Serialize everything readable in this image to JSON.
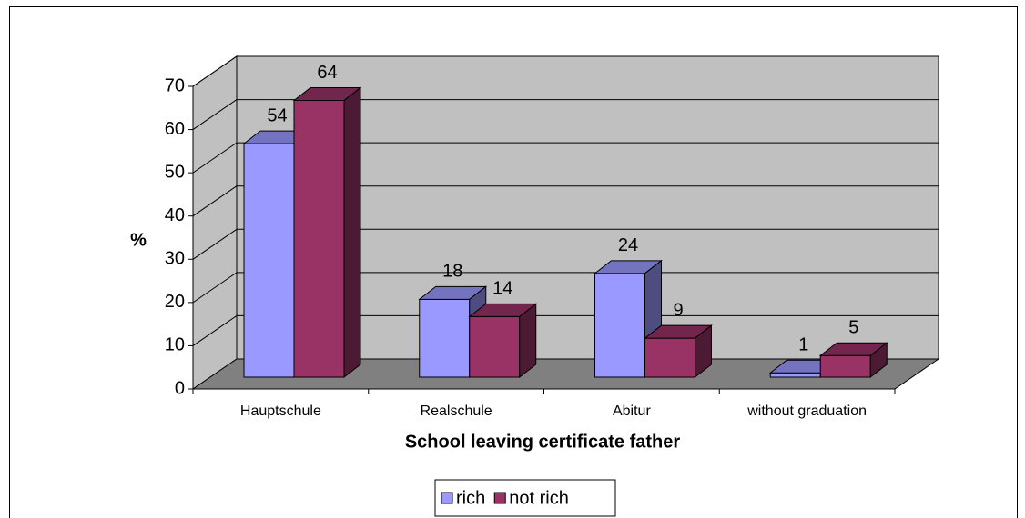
{
  "chart_data": {
    "type": "bar3d",
    "x_label": "School leaving certificate father",
    "y_label": "%",
    "categories": [
      "Hauptschule",
      "Realschule",
      "Abitur",
      "without graduation"
    ],
    "series": [
      {
        "name": "rich",
        "color": "#9999ff",
        "values": [
          54,
          18,
          24,
          1
        ]
      },
      {
        "name": "not rich",
        "color": "#993366",
        "values": [
          64,
          14,
          9,
          5
        ]
      }
    ],
    "ylim": [
      0,
      70
    ],
    "yticks": [
      0,
      10,
      20,
      30,
      40,
      50,
      60,
      70
    ],
    "grid": true,
    "legend": "bottom"
  }
}
